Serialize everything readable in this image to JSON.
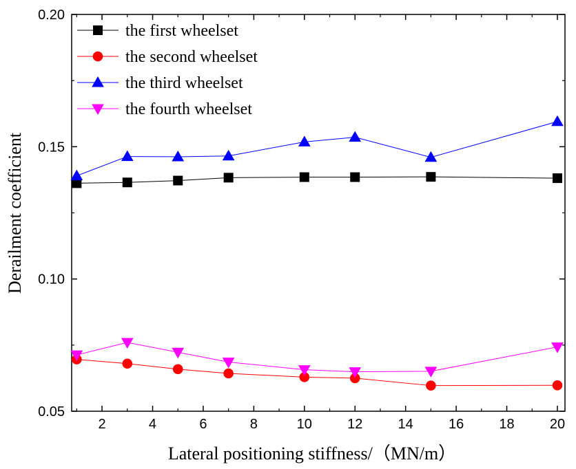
{
  "chart_data": {
    "type": "line",
    "title": "",
    "xlabel": "Lateral positioning stiffness/（MN/m）",
    "ylabel": "Derailment coefficient",
    "x": [
      1,
      3,
      5,
      7,
      10,
      12,
      15,
      20
    ],
    "xlim": [
      0.8,
      20.3
    ],
    "ylim": [
      0.05,
      0.2
    ],
    "xticks": [
      2,
      4,
      6,
      8,
      10,
      12,
      14,
      16,
      18,
      20
    ],
    "yticks": [
      0.05,
      0.1,
      0.15,
      0.2
    ],
    "ytick_labels": [
      "0.05",
      "0.10",
      "0.15",
      "0.20"
    ],
    "grid": false,
    "legend_position": "top-left",
    "series": [
      {
        "name": "the first wheelset",
        "color": "#000000",
        "marker": "square",
        "values": [
          0.1362,
          0.1365,
          0.1372,
          0.1383,
          0.1385,
          0.1385,
          0.1386,
          0.1381
        ]
      },
      {
        "name": "the second wheelset",
        "color": "#ff0000",
        "marker": "circle",
        "values": [
          0.0696,
          0.068,
          0.0659,
          0.0643,
          0.0629,
          0.0625,
          0.0597,
          0.0598
        ]
      },
      {
        "name": "the third wheelset",
        "color": "#0000ff",
        "marker": "triangle-up",
        "values": [
          0.139,
          0.1463,
          0.1462,
          0.1465,
          0.1518,
          0.1536,
          0.146,
          0.1595
        ]
      },
      {
        "name": "the fourth wheelset",
        "color": "#ff00ff",
        "marker": "triangle-down",
        "values": [
          0.0713,
          0.076,
          0.0723,
          0.0686,
          0.0657,
          0.0649,
          0.0651,
          0.0743
        ]
      }
    ]
  }
}
